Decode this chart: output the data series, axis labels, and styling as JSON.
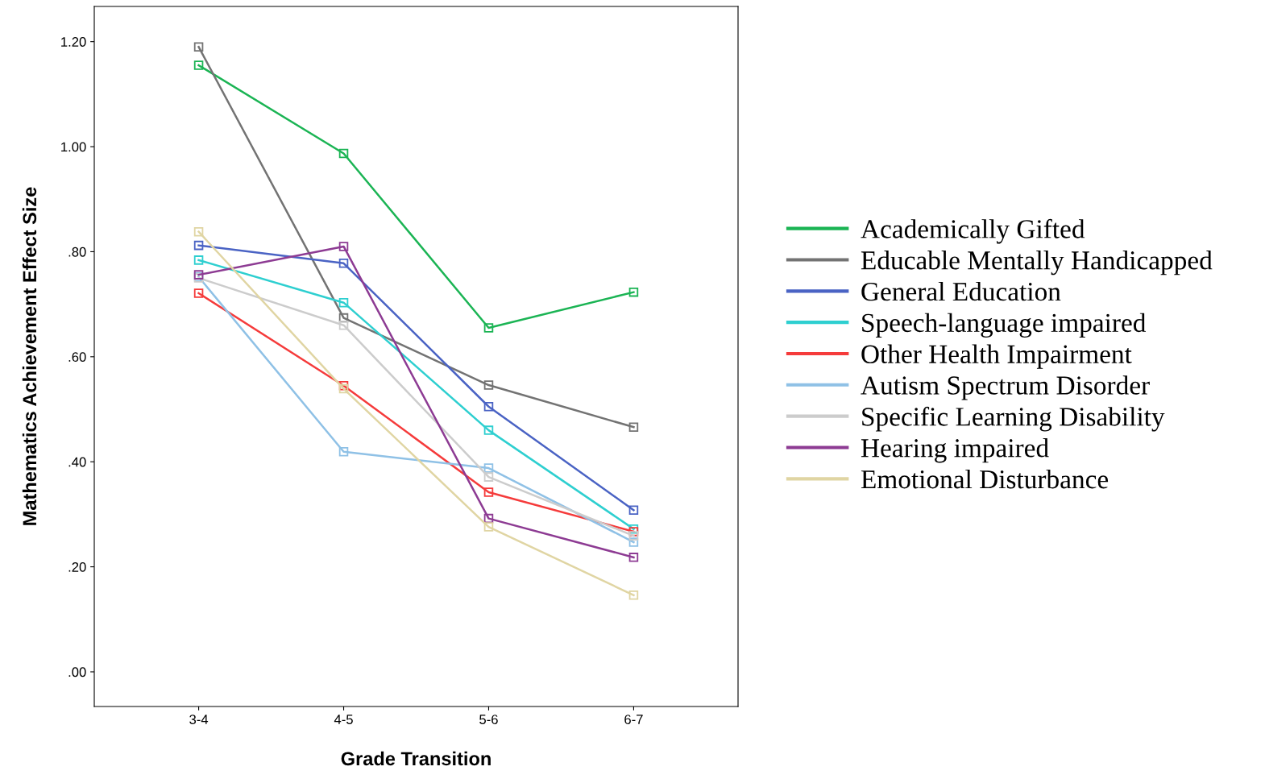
{
  "chart_data": {
    "type": "line",
    "xlabel": "Grade Transition",
    "ylabel": "Mathematics Achievement Effect Size",
    "categories": [
      "3-4",
      "4-5",
      "5-6",
      "6-7"
    ],
    "series": [
      {
        "name": "Academically Gifted",
        "color": "#1bb454",
        "values": [
          1.155,
          0.987,
          0.655,
          0.723
        ]
      },
      {
        "name": "Educable Mentally Handicapped",
        "color": "#737373",
        "values": [
          1.19,
          0.674,
          0.546,
          0.466
        ]
      },
      {
        "name": "General Education",
        "color": "#4a63c4",
        "values": [
          0.812,
          0.778,
          0.505,
          0.308
        ]
      },
      {
        "name": "Speech-language impaired",
        "color": "#2ecfd0",
        "values": [
          0.784,
          0.703,
          0.46,
          0.272
        ]
      },
      {
        "name": "Other Health Impairment",
        "color": "#f53b3b",
        "values": [
          0.721,
          0.545,
          0.342,
          0.267
        ]
      },
      {
        "name": "Autism Spectrum Disorder",
        "color": "#8fc1e6",
        "values": [
          0.752,
          0.419,
          0.388,
          0.247
        ]
      },
      {
        "name": "Specific Learning Disability",
        "color": "#cccccc",
        "values": [
          0.75,
          0.66,
          0.371,
          0.259
        ]
      },
      {
        "name": "Hearing impaired",
        "color": "#8d3b93",
        "values": [
          0.756,
          0.81,
          0.292,
          0.218
        ]
      },
      {
        "name": "Emotional Disturbance",
        "color": "#e0d5a3",
        "values": [
          0.838,
          0.539,
          0.276,
          0.146
        ]
      }
    ],
    "ylim": [
      -0.066,
      1.267
    ],
    "yticks": [
      {
        "value": 0,
        "label": ".00"
      },
      {
        "value": 0.2,
        "label": ".20"
      },
      {
        "value": 0.4,
        "label": ".40"
      },
      {
        "value": 0.6,
        "label": ".60"
      },
      {
        "value": 0.8,
        "label": ".80"
      },
      {
        "value": 1.0,
        "label": "1.00"
      },
      {
        "value": 1.2,
        "label": "1.20"
      }
    ],
    "grid": false,
    "legend": "right",
    "marker": "square",
    "line_style": "solid"
  }
}
